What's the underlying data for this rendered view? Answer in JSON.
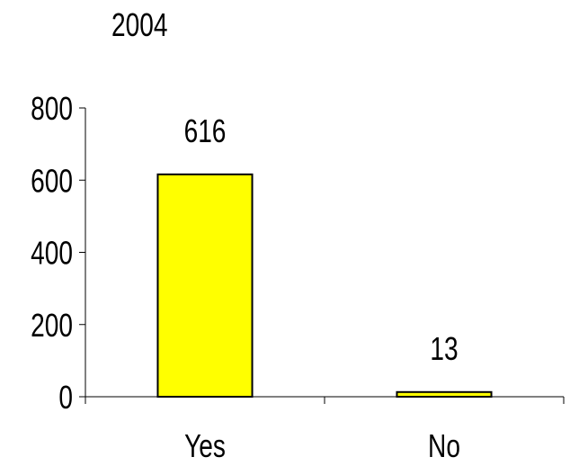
{
  "chart_data": {
    "type": "bar",
    "title": "2004",
    "categories": [
      "Yes",
      "No"
    ],
    "values": [
      616,
      13
    ],
    "data_labels": [
      "616",
      "13"
    ],
    "ylim": [
      0,
      800
    ],
    "yticks": [
      0,
      200,
      400,
      600,
      800
    ],
    "xlabel": "",
    "ylabel": "",
    "grid": false,
    "legend": "none",
    "colors": {
      "bar_fill": "#ffff00",
      "bar_stroke": "#000000",
      "axis": "#000000",
      "background": "#ffffff"
    }
  }
}
